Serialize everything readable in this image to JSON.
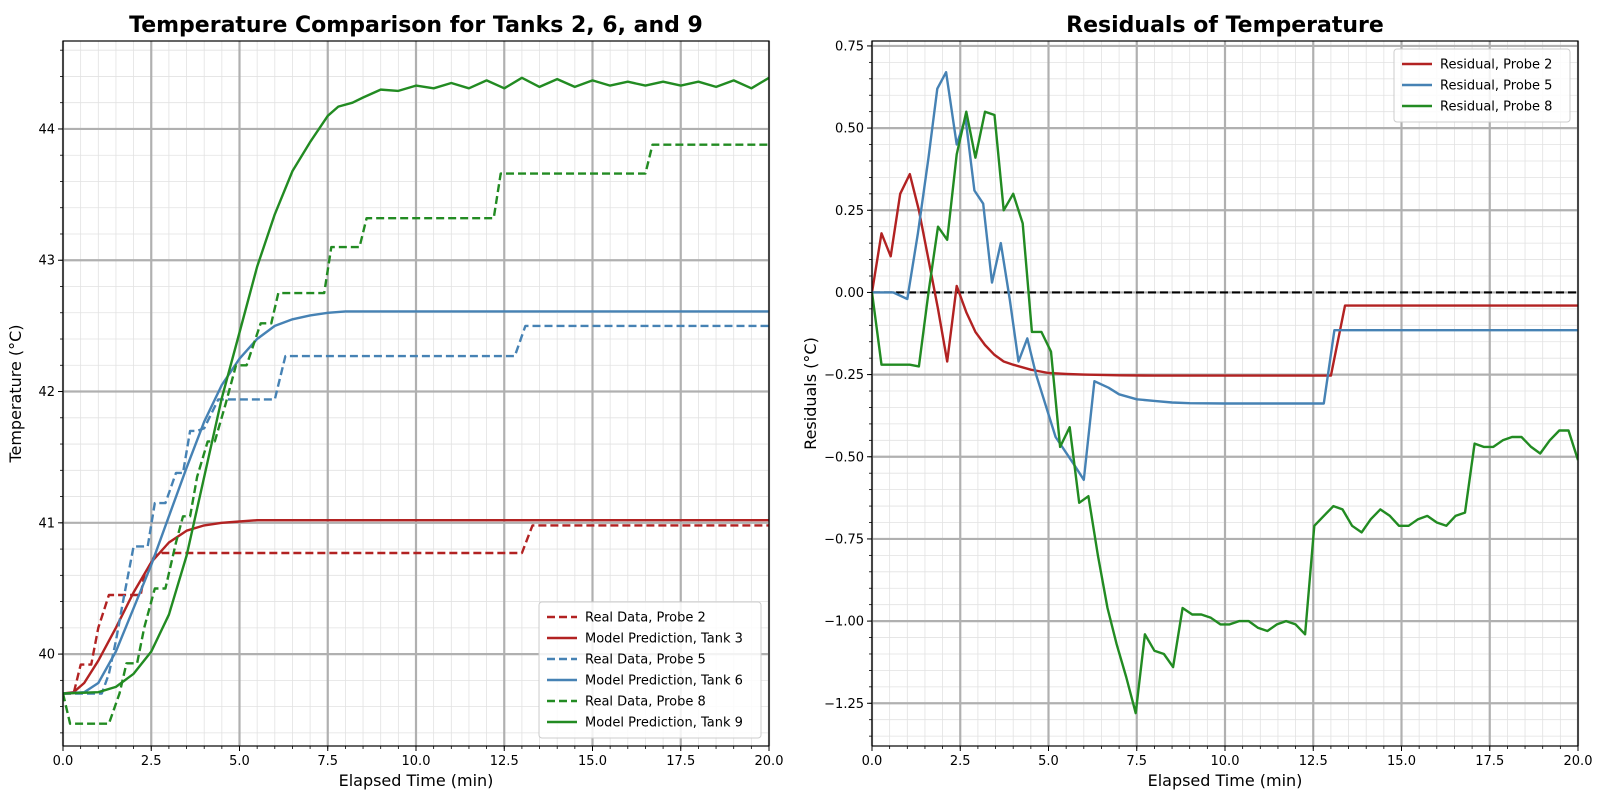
{
  "chart_data": [
    {
      "type": "line",
      "title": "Temperature Comparison for Tanks 2, 6, and 9",
      "xlabel": "Elapsed Time (min)",
      "ylabel": "Temperature (°C)",
      "xlim": [
        0,
        20
      ],
      "ylim": [
        39.3,
        44.67
      ],
      "xticks": [
        0.0,
        2.5,
        5.0,
        7.5,
        10.0,
        12.5,
        15.0,
        17.5,
        20.0
      ],
      "xtick_labels": [
        "0.0",
        "2.5",
        "5.0",
        "7.5",
        "10.0",
        "12.5",
        "15.0",
        "17.5",
        "20.0"
      ],
      "yticks": [
        40,
        41,
        42,
        43,
        44
      ],
      "ytick_labels": [
        "40",
        "41",
        "42",
        "43",
        "44"
      ],
      "grid": true,
      "legend_position": "lower-right",
      "series": [
        {
          "name": "Real Data, Probe 2",
          "color": "#b22222",
          "dash": true,
          "x": [
            0,
            0.3,
            0.5,
            0.8,
            1.0,
            1.3,
            2.2,
            2.3,
            2.6,
            2.8,
            3.0,
            13.0,
            13.3,
            20
          ],
          "y": [
            39.7,
            39.7,
            39.92,
            39.92,
            40.2,
            40.45,
            40.45,
            40.6,
            40.75,
            40.77,
            40.77,
            40.77,
            40.98,
            40.98
          ]
        },
        {
          "name": "Model Prediction, Tank 3",
          "color": "#b22222",
          "dash": false,
          "x": [
            0,
            0.3,
            0.6,
            1.0,
            1.5,
            2.0,
            2.5,
            3.0,
            3.5,
            4.0,
            4.5,
            5.0,
            5.5,
            6.0,
            7.0,
            20
          ],
          "y": [
            39.7,
            39.71,
            39.78,
            39.95,
            40.2,
            40.47,
            40.7,
            40.85,
            40.94,
            40.98,
            41.0,
            41.01,
            41.02,
            41.02,
            41.02,
            41.02
          ]
        },
        {
          "name": "Real Data, Probe 5",
          "color": "#4682b4",
          "dash": true,
          "x": [
            0,
            1.1,
            1.3,
            1.5,
            1.7,
            2.0,
            2.4,
            2.6,
            2.9,
            3.2,
            3.4,
            3.6,
            3.8,
            4.0,
            4.4,
            4.5,
            6.0,
            6.3,
            12.8,
            13.1,
            20
          ],
          "y": [
            39.7,
            39.7,
            39.85,
            40.1,
            40.4,
            40.82,
            40.82,
            41.15,
            41.15,
            41.38,
            41.38,
            41.7,
            41.7,
            41.72,
            41.94,
            41.94,
            41.94,
            42.27,
            42.27,
            42.5,
            42.5
          ]
        },
        {
          "name": "Model Prediction, Tank 6",
          "color": "#4682b4",
          "dash": false,
          "x": [
            0,
            0.6,
            1.0,
            1.5,
            2.0,
            2.5,
            3.0,
            3.5,
            4.0,
            4.5,
            5.0,
            5.5,
            6.0,
            6.5,
            7.0,
            7.5,
            8.0,
            9.0,
            20
          ],
          "y": [
            39.7,
            39.71,
            39.78,
            40.02,
            40.35,
            40.68,
            41.05,
            41.42,
            41.77,
            42.05,
            42.25,
            42.4,
            42.5,
            42.55,
            42.58,
            42.6,
            42.61,
            42.61,
            42.61
          ]
        },
        {
          "name": "Real Data, Probe 8",
          "color": "#228b22",
          "dash": true,
          "x": [
            0,
            0.2,
            1.3,
            1.6,
            1.8,
            2.1,
            2.3,
            2.6,
            2.9,
            3.2,
            3.4,
            3.6,
            3.8,
            4.1,
            4.3,
            4.6,
            4.9,
            5.2,
            5.6,
            5.9,
            6.1,
            7.4,
            7.6,
            8.4,
            8.6,
            12.2,
            12.4,
            16.5,
            16.7,
            20
          ],
          "y": [
            39.7,
            39.47,
            39.47,
            39.7,
            39.93,
            39.93,
            40.2,
            40.5,
            40.5,
            40.85,
            41.05,
            41.05,
            41.35,
            41.62,
            41.62,
            41.9,
            42.2,
            42.2,
            42.52,
            42.52,
            42.75,
            42.75,
            43.1,
            43.1,
            43.32,
            43.32,
            43.66,
            43.66,
            43.88,
            43.88
          ]
        },
        {
          "name": "Model Prediction, Tank 9",
          "color": "#228b22",
          "dash": false,
          "x": [
            0,
            1.0,
            1.5,
            2.0,
            2.5,
            3.0,
            3.5,
            4.0,
            4.5,
            5.0,
            5.5,
            6.0,
            6.5,
            7.0,
            7.5,
            7.8,
            8.2,
            8.5,
            9.0,
            9.5,
            10.0,
            10.5,
            11.0,
            11.5,
            12.0,
            12.5,
            13.0,
            13.5,
            14.0,
            14.5,
            15.0,
            15.5,
            16.0,
            16.5,
            17.0,
            17.5,
            18.0,
            18.5,
            19.0,
            19.5,
            20.0
          ],
          "y": [
            39.7,
            39.71,
            39.75,
            39.85,
            40.02,
            40.3,
            40.75,
            41.35,
            41.95,
            42.45,
            42.95,
            43.35,
            43.68,
            43.9,
            44.1,
            44.17,
            44.2,
            44.24,
            44.3,
            44.29,
            44.33,
            44.31,
            44.35,
            44.31,
            44.37,
            44.31,
            44.39,
            44.32,
            44.38,
            44.32,
            44.37,
            44.33,
            44.36,
            44.33,
            44.36,
            44.33,
            44.36,
            44.32,
            44.37,
            44.31,
            44.39
          ]
        }
      ]
    },
    {
      "type": "line",
      "title": "Residuals of Temperature",
      "xlabel": "Elapsed Time (min)",
      "ylabel": "Residuals (°C)",
      "xlim": [
        0,
        20
      ],
      "ylim": [
        -1.38,
        0.765
      ],
      "xticks": [
        0.0,
        2.5,
        5.0,
        7.5,
        10.0,
        12.5,
        15.0,
        17.5,
        20.0
      ],
      "xtick_labels": [
        "0.0",
        "2.5",
        "5.0",
        "7.5",
        "10.0",
        "12.5",
        "15.0",
        "17.5",
        "20.0"
      ],
      "yticks": [
        0.75,
        0.5,
        0.25,
        0.0,
        -0.25,
        -0.5,
        -0.75,
        -1.0,
        -1.25
      ],
      "ytick_labels": [
        "0.75",
        "0.50",
        "0.25",
        "0.00",
        "−0.25",
        "−0.50",
        "−0.75",
        "−1.00",
        "−1.25"
      ],
      "grid": true,
      "legend_position": "upper-right",
      "zero_line": 0,
      "series": [
        {
          "name": "Residual, Probe 2",
          "color": "#b22222",
          "x": [
            0,
            0.27,
            0.53,
            0.8,
            1.07,
            1.33,
            1.6,
            1.87,
            2.13,
            2.4,
            2.67,
            2.93,
            3.2,
            3.47,
            3.73,
            4.0,
            4.5,
            5.0,
            5.5,
            6.0,
            7.0,
            8.0,
            10.0,
            12.0,
            13.0,
            13.4,
            14.0,
            20.0
          ],
          "y": [
            0.0,
            0.18,
            0.11,
            0.3,
            0.36,
            0.25,
            0.1,
            -0.05,
            -0.21,
            0.02,
            -0.06,
            -0.12,
            -0.16,
            -0.19,
            -0.21,
            -0.22,
            -0.235,
            -0.245,
            -0.248,
            -0.25,
            -0.252,
            -0.253,
            -0.253,
            -0.253,
            -0.253,
            -0.04,
            -0.04,
            -0.04
          ]
        },
        {
          "name": "Residual, Probe 5",
          "color": "#4682b4",
          "x": [
            0,
            0.6,
            1.0,
            1.3,
            1.6,
            1.85,
            2.1,
            2.4,
            2.65,
            2.9,
            3.15,
            3.4,
            3.65,
            3.9,
            4.15,
            4.4,
            4.65,
            5.2,
            5.7,
            6.0,
            6.3,
            6.7,
            7.0,
            7.5,
            8.0,
            8.5,
            9.0,
            10.0,
            11.0,
            12.0,
            12.8,
            13.1,
            14.0,
            20.0
          ],
          "y": [
            0.0,
            0.0,
            -0.02,
            0.18,
            0.41,
            0.62,
            0.67,
            0.45,
            0.53,
            0.31,
            0.27,
            0.03,
            0.15,
            -0.02,
            -0.21,
            -0.14,
            -0.25,
            -0.44,
            -0.52,
            -0.57,
            -0.27,
            -0.29,
            -0.31,
            -0.325,
            -0.33,
            -0.335,
            -0.337,
            -0.338,
            -0.338,
            -0.338,
            -0.338,
            -0.115,
            -0.115,
            -0.115
          ]
        },
        {
          "name": "Residual, Probe 8",
          "color": "#228b22",
          "x": [
            0,
            0.27,
            0.53,
            0.8,
            1.07,
            1.33,
            1.6,
            1.87,
            2.13,
            2.4,
            2.67,
            2.93,
            3.2,
            3.47,
            3.73,
            4.0,
            4.27,
            4.53,
            4.8,
            5.07,
            5.33,
            5.6,
            5.87,
            6.13,
            6.4,
            6.67,
            6.93,
            7.2,
            7.47,
            7.73,
            8.0,
            8.27,
            8.53,
            8.8,
            9.07,
            9.33,
            9.6,
            9.87,
            10.13,
            10.4,
            10.67,
            10.93,
            11.2,
            11.47,
            11.73,
            12.0,
            12.27,
            12.53,
            12.8,
            13.07,
            13.33,
            13.6,
            13.87,
            14.13,
            14.4,
            14.67,
            14.93,
            15.2,
            15.47,
            15.73,
            16.0,
            16.27,
            16.53,
            16.8,
            17.07,
            17.33,
            17.6,
            17.87,
            18.13,
            18.4,
            18.67,
            18.93,
            19.2,
            19.47,
            19.73,
            20.0
          ],
          "y": [
            0.0,
            -0.22,
            -0.22,
            -0.22,
            -0.22,
            -0.225,
            0.0,
            0.2,
            0.16,
            0.42,
            0.55,
            0.41,
            0.55,
            0.54,
            0.25,
            0.3,
            0.21,
            -0.12,
            -0.12,
            -0.18,
            -0.47,
            -0.41,
            -0.64,
            -0.62,
            -0.8,
            -0.96,
            -1.07,
            -1.17,
            -1.28,
            -1.04,
            -1.09,
            -1.1,
            -1.14,
            -0.96,
            -0.98,
            -0.98,
            -0.99,
            -1.01,
            -1.01,
            -1.0,
            -1.0,
            -1.02,
            -1.03,
            -1.01,
            -1.0,
            -1.01,
            -1.04,
            -0.71,
            -0.68,
            -0.65,
            -0.66,
            -0.71,
            -0.73,
            -0.69,
            -0.66,
            -0.68,
            -0.71,
            -0.71,
            -0.69,
            -0.68,
            -0.7,
            -0.71,
            -0.68,
            -0.67,
            -0.46,
            -0.47,
            -0.47,
            -0.45,
            -0.44,
            -0.44,
            -0.47,
            -0.49,
            -0.45,
            -0.42,
            -0.42,
            -0.51
          ]
        }
      ]
    }
  ]
}
